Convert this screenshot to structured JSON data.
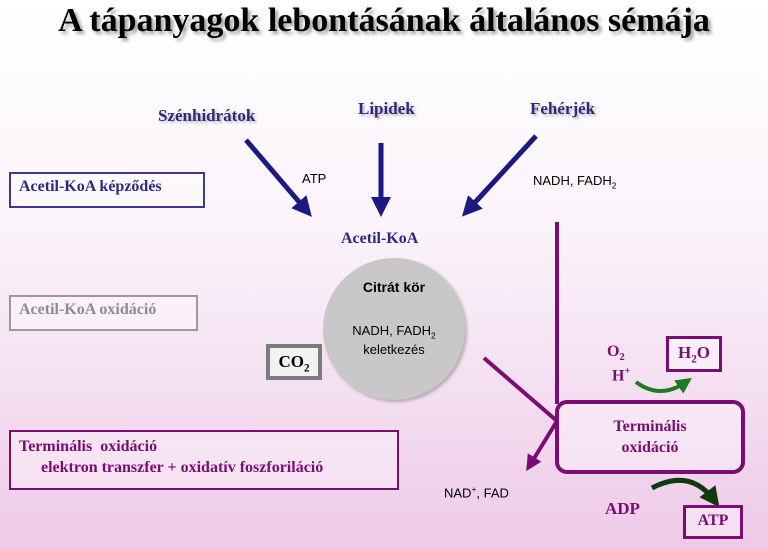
{
  "title": "A tápanyagok lebontásának általános sémája",
  "sources": {
    "carbs": "Szénhidrátok",
    "lipids": "Lipidek",
    "proteins": "Fehérjék"
  },
  "labels": {
    "atp_small": "ATP",
    "nadh_fadh_top": "NADH, FADH",
    "nadh_fadh_top_sub": "2",
    "acetyl_coa": "Acetil-KoA",
    "citrate_cycle": "Citrát kör",
    "nadh_fadh_cycle": "NADH, FADH",
    "nadh_fadh_cycle_sub": "2",
    "formation": "keletkezés",
    "co2_main": "CO",
    "co2_sub": "2",
    "o2_main": "O",
    "o2_sub": "2",
    "h_main": "H",
    "h_sup": "+",
    "h2o_a": "H",
    "h2o_sub": "2",
    "h2o_b": "O",
    "terminal_box_line1": "Terminális",
    "terminal_box_line2": "oxidáció",
    "nad_main": "NAD",
    "nad_sup": "+",
    "nad_rest": ", FAD",
    "adp": "ADP",
    "atp_out": "ATP"
  },
  "stages": {
    "formation": "Acetil-KoA képződés",
    "oxidation": "Acetil-KoA oxidáció",
    "terminal_line1": "Terminális  oxidáció",
    "terminal_line2": "elektron transzfer + oxidatív foszforiláció"
  },
  "colors": {
    "arrow_navy": "#1a1a80",
    "purple": "#7a0c73",
    "green": "#1e7a1e",
    "stage1_border": "#3a3a90",
    "stage2_border": "#9a9a9a",
    "stage3_border": "#7a0c73"
  }
}
